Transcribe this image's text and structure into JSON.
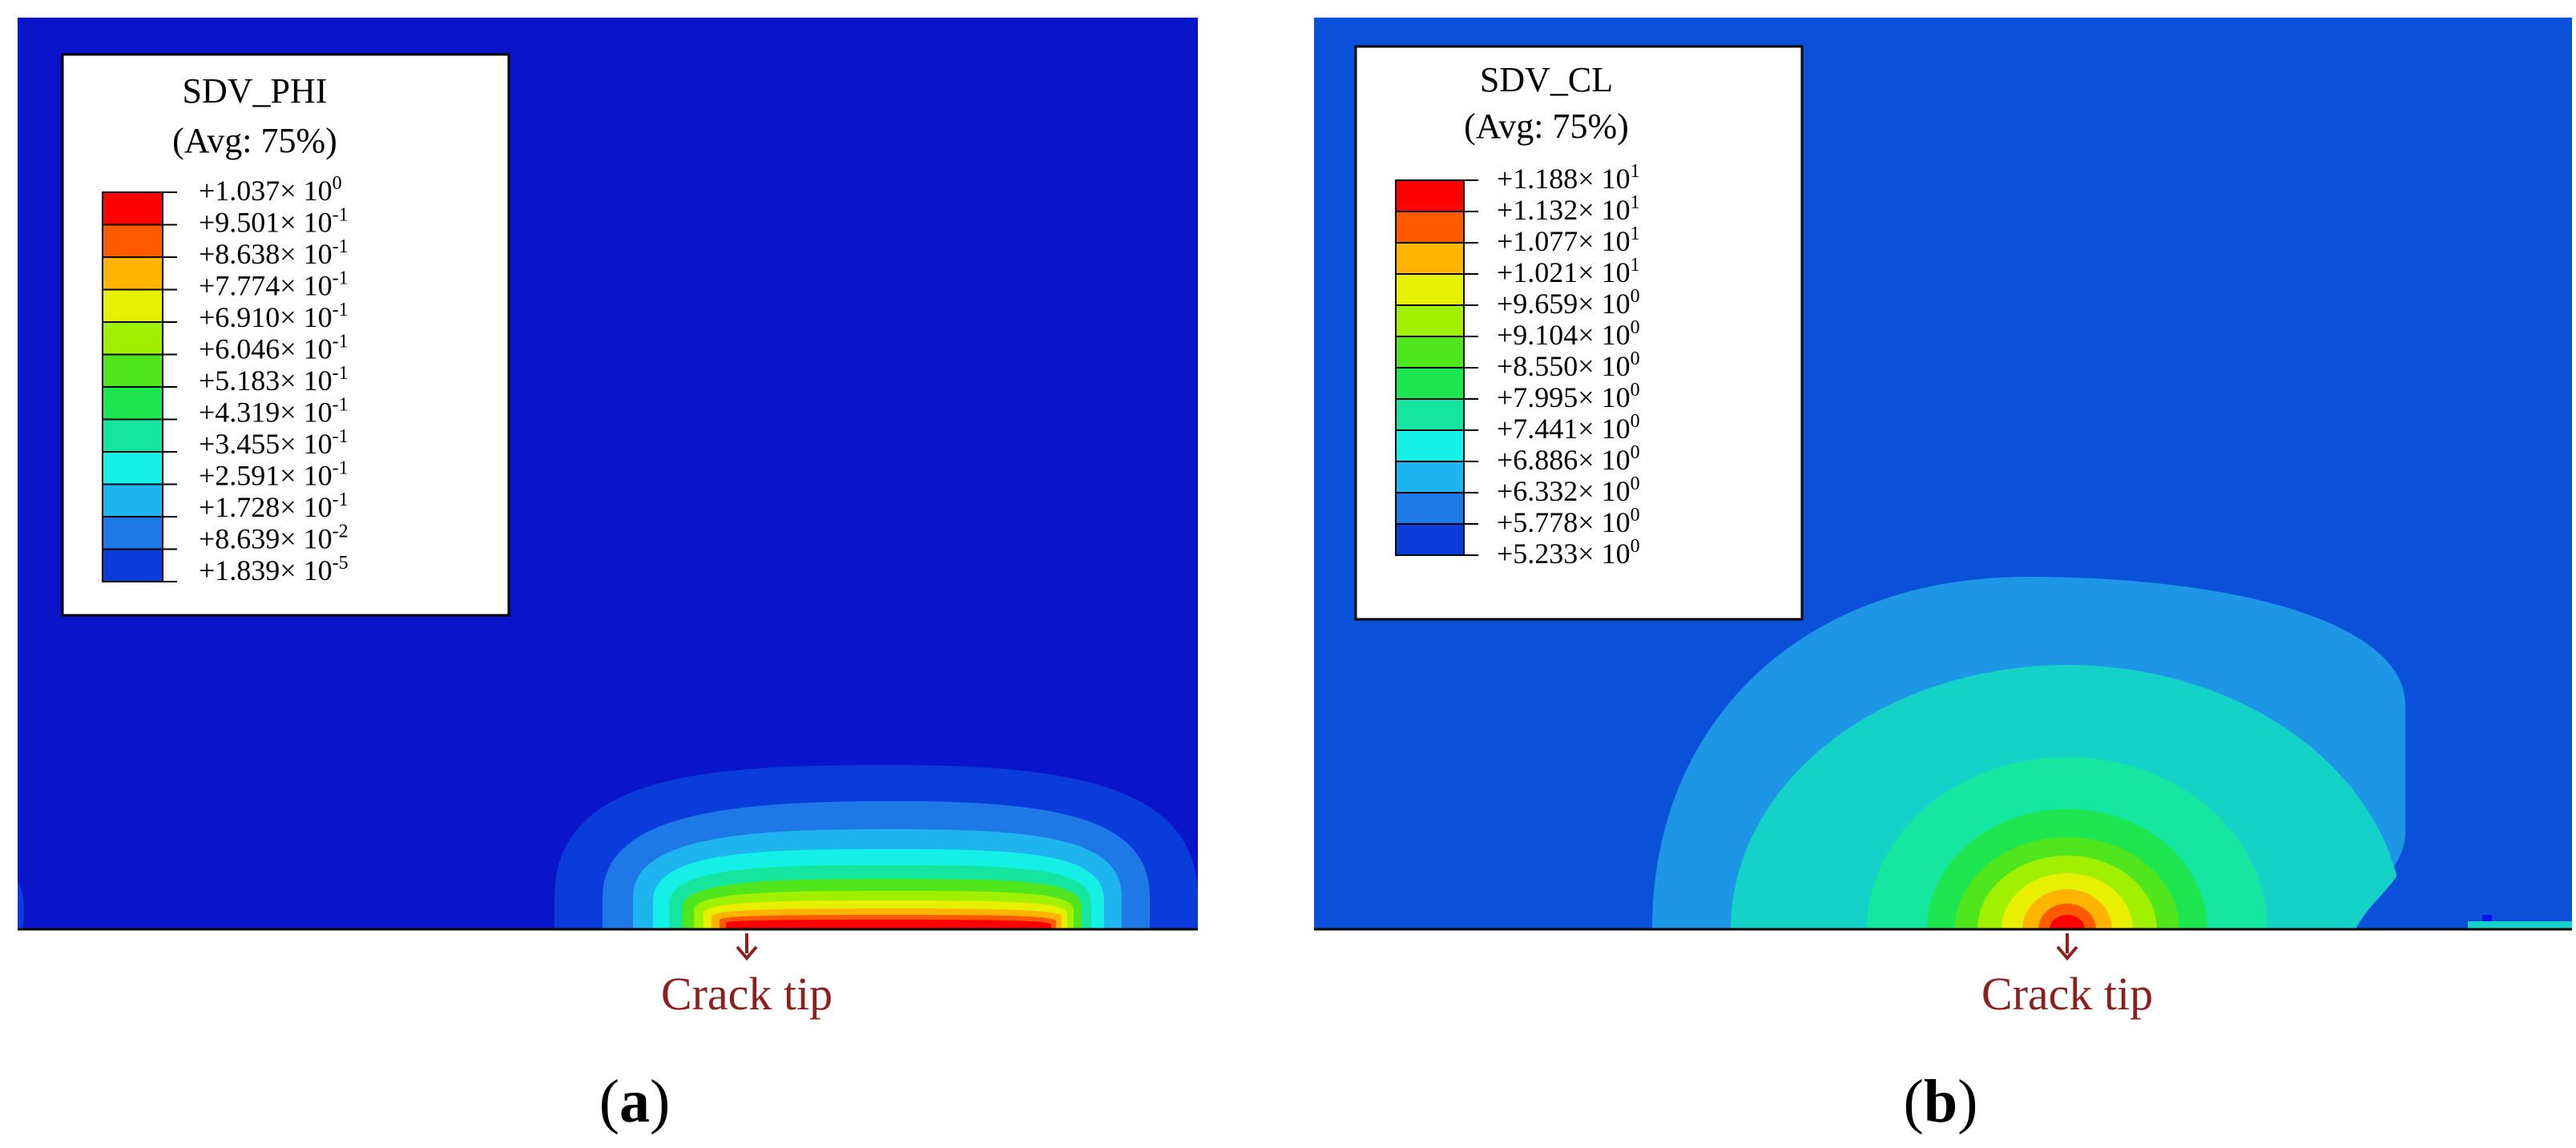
{
  "panels": [
    {
      "id": "a",
      "label_open": "(",
      "label_letter": "a",
      "label_close": ")",
      "legend": {
        "title": "SDV_PHI",
        "avg": "(Avg: 75%)",
        "entries": [
          [
            "+1.037× 10",
            "0"
          ],
          [
            "+9.501× 10",
            "-1"
          ],
          [
            "+8.638× 10",
            "-1"
          ],
          [
            "+7.774× 10",
            "-1"
          ],
          [
            "+6.910× 10",
            "-1"
          ],
          [
            "+6.046× 10",
            "-1"
          ],
          [
            "+5.183× 10",
            "-1"
          ],
          [
            "+4.319× 10",
            "-1"
          ],
          [
            "+3.455× 10",
            "-1"
          ],
          [
            "+2.591× 10",
            "-1"
          ],
          [
            "+1.728× 10",
            "-1"
          ],
          [
            "+8.639× 10",
            "-2"
          ],
          [
            "+1.839× 10",
            "-5"
          ]
        ]
      },
      "annotation": "Crack tip",
      "background_color": "#0a14c8"
    },
    {
      "id": "b",
      "label_open": "(",
      "label_letter": "b",
      "label_close": ")",
      "legend": {
        "title": "SDV_CL",
        "avg": "(Avg: 75%)",
        "entries": [
          [
            "+1.188× 10",
            "1"
          ],
          [
            "+1.132× 10",
            "1"
          ],
          [
            "+1.077× 10",
            "1"
          ],
          [
            "+1.021× 10",
            "1"
          ],
          [
            "+9.659× 10",
            "0"
          ],
          [
            "+9.104× 10",
            "0"
          ],
          [
            "+8.550× 10",
            "0"
          ],
          [
            "+7.995× 10",
            "0"
          ],
          [
            "+7.441× 10",
            "0"
          ],
          [
            "+6.886× 10",
            "0"
          ],
          [
            "+6.332× 10",
            "0"
          ],
          [
            "+5.778× 10",
            "0"
          ],
          [
            "+5.233× 10",
            "0"
          ]
        ]
      },
      "annotation": "Crack tip",
      "background_color": "#0a50d8"
    }
  ],
  "colormap": [
    "#ff0000",
    "#ff5a00",
    "#ffb400",
    "#e6f000",
    "#a0f000",
    "#50e61e",
    "#1ee650",
    "#14e6a0",
    "#14f0e6",
    "#1eb4f0",
    "#1e78e6",
    "#0a3cdc",
    "#0a14f0"
  ],
  "annotation_color": "#8b2020"
}
